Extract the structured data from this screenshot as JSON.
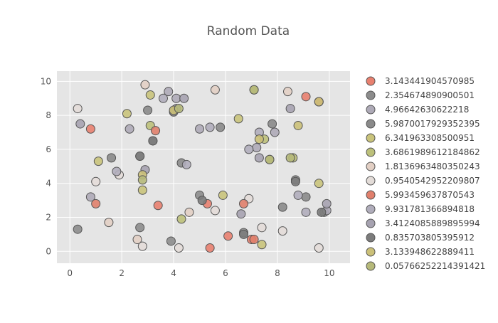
{
  "chart_data": {
    "type": "scatter",
    "title": "Random Data",
    "xlabel": "",
    "ylabel": "",
    "xlim": [
      -0.5,
      10.8
    ],
    "ylim": [
      -0.7,
      10.6
    ],
    "x_ticks": [
      0,
      2,
      4,
      6,
      8,
      10
    ],
    "y_ticks": [
      0,
      2,
      4,
      6,
      8,
      10
    ],
    "grid": true,
    "legend_position": "right",
    "series": [
      {
        "name": "3.143441904570985",
        "color": "#e8806f",
        "points": [
          [
            0.8,
            7.2
          ],
          [
            3.4,
            2.7
          ],
          [
            5.4,
            0.2
          ],
          [
            6.1,
            0.9
          ],
          [
            9.1,
            9.1
          ],
          [
            5.3,
            2.8
          ],
          [
            7.0,
            0.7
          ]
        ]
      },
      {
        "name": "2.354674890900501",
        "color": "#8c8c8c",
        "points": [
          [
            0.3,
            1.3
          ],
          [
            2.7,
            1.4
          ],
          [
            3.9,
            0.6
          ],
          [
            5.0,
            3.3
          ],
          [
            6.7,
            1.1
          ],
          [
            8.7,
            4.2
          ],
          [
            9.8,
            2.3
          ],
          [
            2.7,
            5.6
          ]
        ]
      },
      {
        "name": "4.96642630622218",
        "color": "#aeaab7",
        "points": [
          [
            0.8,
            3.2
          ],
          [
            2.3,
            7.2
          ],
          [
            4.1,
            9.0
          ],
          [
            5.0,
            7.2
          ],
          [
            7.2,
            6.1
          ],
          [
            7.9,
            7.0
          ],
          [
            9.9,
            2.4
          ],
          [
            3.8,
            9.4
          ]
        ]
      },
      {
        "name": "5.9870017929352395",
        "color": "#8a8a8a",
        "points": [
          [
            1.6,
            5.5
          ],
          [
            3.0,
            8.3
          ],
          [
            4.3,
            5.2
          ],
          [
            5.8,
            7.3
          ],
          [
            8.2,
            2.6
          ],
          [
            9.1,
            3.2
          ],
          [
            7.8,
            7.5
          ],
          [
            3.2,
            6.5
          ]
        ]
      },
      {
        "name": "6.341963308500951",
        "color": "#c9c37b",
        "points": [
          [
            1.1,
            5.3
          ],
          [
            2.8,
            3.6
          ],
          [
            3.1,
            9.2
          ],
          [
            5.9,
            3.3
          ],
          [
            7.4,
            0.4
          ],
          [
            9.6,
            4.0
          ],
          [
            2.2,
            8.1
          ],
          [
            6.5,
            7.8
          ]
        ]
      },
      {
        "name": "3.6861989612184862",
        "color": "#bcc07a",
        "points": [
          [
            3.1,
            7.4
          ],
          [
            4.3,
            1.9
          ],
          [
            7.1,
            9.5
          ],
          [
            7.5,
            6.6
          ],
          [
            8.6,
            5.5
          ],
          [
            7.7,
            5.4
          ]
        ]
      },
      {
        "name": "1.8136963480350243",
        "color": "#e2cfc4",
        "points": [
          [
            1.5,
            1.7
          ],
          [
            2.6,
            0.7
          ],
          [
            4.6,
            2.3
          ],
          [
            5.6,
            9.5
          ],
          [
            8.4,
            9.4
          ],
          [
            9.6,
            8.8
          ],
          [
            2.9,
            9.8
          ]
        ]
      },
      {
        "name": "0.9540542952209807",
        "color": "#e3dcd8",
        "points": [
          [
            0.3,
            8.4
          ],
          [
            1.0,
            4.1
          ],
          [
            2.8,
            0.3
          ],
          [
            4.2,
            0.2
          ],
          [
            5.6,
            2.4
          ],
          [
            7.4,
            1.4
          ],
          [
            8.2,
            1.2
          ],
          [
            9.6,
            0.2
          ],
          [
            1.9,
            4.5
          ],
          [
            6.9,
            3.1
          ]
        ]
      },
      {
        "name": "5.993459637870543",
        "color": "#e07f6c",
        "points": [
          [
            1.0,
            2.8
          ],
          [
            3.3,
            7.1
          ],
          [
            6.7,
            2.8
          ],
          [
            9.6,
            8.8
          ],
          [
            7.1,
            0.7
          ]
        ]
      },
      {
        "name": "9.931781366894818",
        "color": "#b0adbb",
        "points": [
          [
            1.8,
            4.7
          ],
          [
            3.6,
            9.0
          ],
          [
            5.4,
            7.3
          ],
          [
            6.9,
            6.0
          ],
          [
            8.8,
            3.3
          ],
          [
            9.1,
            2.3
          ],
          [
            7.3,
            7.0
          ],
          [
            4.5,
            5.1
          ]
        ]
      },
      {
        "name": "3.4124085889895994",
        "color": "#a6a2b0",
        "points": [
          [
            2.9,
            4.8
          ],
          [
            4.1,
            8.4
          ],
          [
            6.6,
            2.2
          ],
          [
            7.3,
            5.5
          ],
          [
            8.5,
            8.4
          ],
          [
            9.9,
            2.8
          ],
          [
            4.4,
            9.0
          ],
          [
            0.4,
            7.5
          ]
        ]
      },
      {
        "name": "0.835703805395912",
        "color": "#7c7c7c",
        "points": [
          [
            3.2,
            6.5
          ],
          [
            4.0,
            8.2
          ],
          [
            5.1,
            3.0
          ],
          [
            6.7,
            1.0
          ],
          [
            8.7,
            4.1
          ],
          [
            9.7,
            2.3
          ],
          [
            2.7,
            5.6
          ]
        ]
      },
      {
        "name": "3.133948622889411",
        "color": "#cbc078",
        "points": [
          [
            2.8,
            4.5
          ],
          [
            4.0,
            8.3
          ],
          [
            7.3,
            6.6
          ],
          [
            8.8,
            7.4
          ],
          [
            9.6,
            8.8
          ]
        ]
      },
      {
        "name": "0.05766252214391421",
        "color": "#b6b97a",
        "points": [
          [
            2.8,
            4.2
          ],
          [
            4.2,
            8.4
          ],
          [
            7.1,
            9.5
          ],
          [
            8.5,
            5.5
          ],
          [
            7.7,
            5.4
          ]
        ]
      }
    ]
  }
}
